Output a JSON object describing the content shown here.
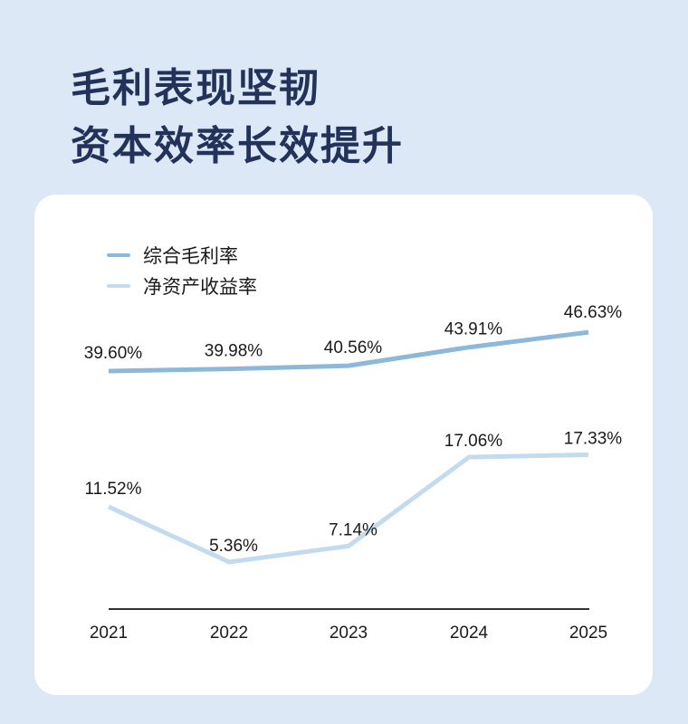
{
  "header": {
    "title_line1": "毛利表现坚韧",
    "title_line2": "资本效率长效提升"
  },
  "colors": {
    "background": "#dce8f5",
    "title": "#23325a",
    "card": "#ffffff",
    "series_gross_margin": "#8cb8dc",
    "series_roe": "#c3dbee",
    "axis": "#333333"
  },
  "legend": [
    {
      "label": "综合毛利率",
      "color": "#8cb8dc"
    },
    {
      "label": "净资产收益率",
      "color": "#c3dbee"
    }
  ],
  "chart_data": {
    "type": "line",
    "title": "毛利表现坚韧 资本效率长效提升",
    "xlabel": "",
    "ylabel": "",
    "categories": [
      "2021",
      "2022",
      "2023",
      "2024",
      "2025"
    ],
    "series": [
      {
        "name": "综合毛利率",
        "values": [
          39.6,
          39.98,
          40.56,
          43.91,
          46.63
        ],
        "labels": [
          "39.60%",
          "39.98%",
          "40.56%",
          "43.91%",
          "46.63%"
        ]
      },
      {
        "name": "净资产收益率",
        "values": [
          11.52,
          5.36,
          7.14,
          17.06,
          17.33
        ],
        "labels": [
          "11.52%",
          "5.36%",
          "7.14%",
          "17.06%",
          "17.33%"
        ]
      }
    ],
    "grid": false,
    "legend_position": "top-left",
    "unit": "%"
  }
}
